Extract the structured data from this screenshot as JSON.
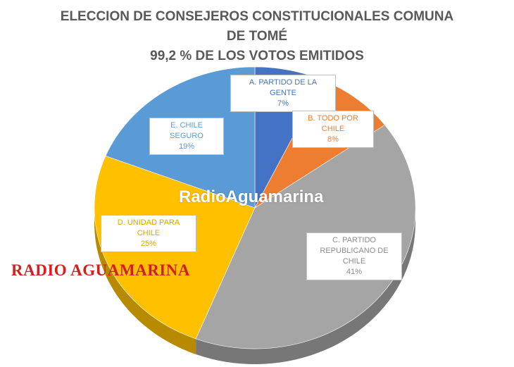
{
  "chart_data": {
    "type": "pie",
    "title_lines": [
      "ELECCION DE CONSEJEROS CONSTITUCIONALES COMUNA",
      "DE TOMÉ",
      "99,2 % DE LOS VOTOS EMITIDOS"
    ],
    "slices": [
      {
        "label": "A. PARTIDO DE LA GENTE",
        "value": 7,
        "pct": "7%",
        "color": "#4472c4"
      },
      {
        "label": "B. TODO POR CHILE",
        "value": 8,
        "pct": "8%",
        "color": "#ed7d31"
      },
      {
        "label": "C. PARTIDO REPUBLICANO DE CHILE",
        "value": 41,
        "pct": "41%",
        "color": "#a5a5a5"
      },
      {
        "label": "D. UNIDAD PARA CHILE",
        "value": 25,
        "pct": "25%",
        "color": "#ffc000"
      },
      {
        "label": "E. CHILE SEGURO",
        "value": 19,
        "pct": "19%",
        "color": "#5b9bd5"
      }
    ]
  },
  "watermarks": {
    "overlay": "RadioAguamarina",
    "red": "RADIO AGUAMARINA"
  }
}
